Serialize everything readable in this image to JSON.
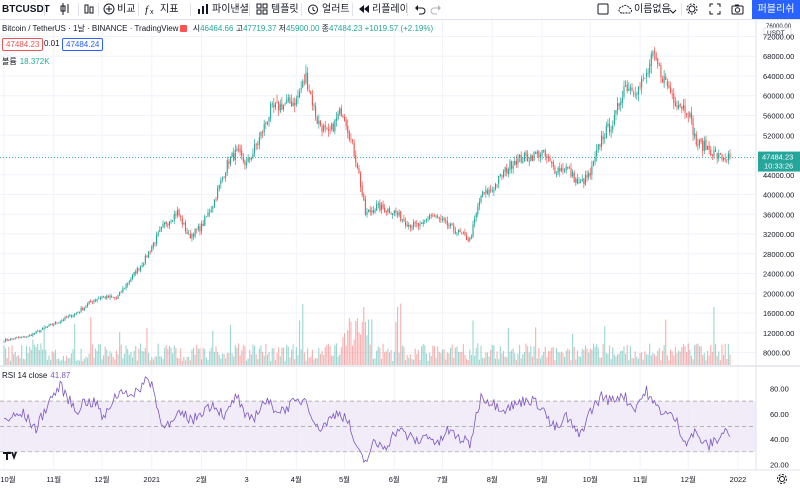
{
  "toolbar": {
    "symbol": "BTCUSDT",
    "compare_label": "비교",
    "indicators_label": "지표",
    "pine_label": "파이낸셜",
    "templates_label": "템플릿",
    "alert_label": "얼러트",
    "replay_label": "리플레이",
    "unnamed_label": "이름없음",
    "publish_label": "퍼블리쉬",
    "accent": "#2962ff"
  },
  "legend": {
    "title": "Bitcoin / TetherUS · 1날 · BINANCE · TradingView",
    "open_key": "시",
    "open": "46464.66",
    "high_key": "고",
    "high": "47719.37",
    "low_key": "저",
    "low": "45900.00",
    "close_key": "종",
    "close": "47484.23",
    "change": "+1019.57 (+2.19%)",
    "bid": "47484.23",
    "spread": "0.01",
    "ask": "47484.24"
  },
  "volume_legend": {
    "label": "볼륨",
    "value": "18.372K"
  },
  "rsi_legend": {
    "label": "RSI 14 close",
    "value": "41.87"
  },
  "chart_data": [
    {
      "type": "candlestick",
      "title": "Bitcoin / TetherUS · 1날 · BINANCE",
      "price_axis_unit": "USDT",
      "y_ticks": [
        8000,
        12000,
        16000,
        20000,
        24000,
        28000,
        32000,
        36000,
        40000,
        44000,
        48000,
        52000,
        56000,
        60000,
        64000,
        68000,
        72000
      ],
      "y_axis_top_label": "76000.00",
      "ylim": [
        6500,
        72500
      ],
      "last_price": 47484.23,
      "last_price_label": "47484.23",
      "countdown_label": "10:33:26",
      "x_labels": [
        "10월",
        "11월",
        "12월",
        "2021",
        "2월",
        "3",
        "4월",
        "5월",
        "6월",
        "7월",
        "8월",
        "9월",
        "10월",
        "11월",
        "12월",
        "2022"
      ],
      "x_label_index": [
        0,
        31,
        61,
        92,
        123,
        151,
        182,
        212,
        243,
        273,
        304,
        335,
        365,
        396,
        426,
        457
      ],
      "n_days": 453,
      "approx_close_anchors": [
        [
          0,
          10500
        ],
        [
          15,
          11300
        ],
        [
          25,
          12900
        ],
        [
          31,
          13800
        ],
        [
          45,
          16000
        ],
        [
          55,
          18500
        ],
        [
          61,
          19300
        ],
        [
          70,
          19000
        ],
        [
          80,
          23500
        ],
        [
          88,
          27000
        ],
        [
          92,
          29500
        ],
        [
          100,
          34000
        ],
        [
          108,
          36500
        ],
        [
          115,
          31500
        ],
        [
          123,
          33500
        ],
        [
          130,
          38000
        ],
        [
          140,
          47000
        ],
        [
          145,
          48500
        ],
        [
          151,
          46000
        ],
        [
          158,
          50500
        ],
        [
          166,
          57000
        ],
        [
          172,
          58000
        ],
        [
          182,
          59000
        ],
        [
          188,
          64000
        ],
        [
          195,
          55000
        ],
        [
          202,
          52000
        ],
        [
          210,
          57000
        ],
        [
          212,
          56000
        ],
        [
          220,
          46000
        ],
        [
          225,
          36000
        ],
        [
          232,
          37500
        ],
        [
          243,
          36500
        ],
        [
          252,
          34000
        ],
        [
          260,
          33500
        ],
        [
          265,
          36000
        ],
        [
          273,
          34500
        ],
        [
          282,
          32500
        ],
        [
          290,
          30800
        ],
        [
          297,
          39800
        ],
        [
          304,
          41000
        ],
        [
          310,
          44000
        ],
        [
          318,
          47000
        ],
        [
          326,
          47500
        ],
        [
          335,
          48500
        ],
        [
          343,
          45000
        ],
        [
          350,
          45500
        ],
        [
          358,
          42000
        ],
        [
          365,
          44000
        ],
        [
          372,
          51500
        ],
        [
          380,
          55000
        ],
        [
          386,
          62000
        ],
        [
          395,
          61500
        ],
        [
          400,
          64000
        ],
        [
          404,
          68000
        ],
        [
          410,
          64000
        ],
        [
          418,
          59000
        ],
        [
          426,
          57000
        ],
        [
          431,
          50500
        ],
        [
          438,
          49500
        ],
        [
          445,
          47500
        ],
        [
          452,
          47500
        ]
      ]
    },
    {
      "type": "bar",
      "title": "볼륨",
      "last_value": "18.372K",
      "up_color": "#26a69a",
      "down_color": "#ef5350"
    },
    {
      "type": "line",
      "title": "RSI 14 close",
      "last_value": 41.87,
      "y_ticks": [
        20,
        40,
        60,
        80
      ],
      "ylim": [
        18,
        93
      ],
      "upper_band": 70,
      "lower_band": 30,
      "middle_band": 50,
      "approx_anchors": [
        [
          0,
          55
        ],
        [
          12,
          60
        ],
        [
          20,
          48
        ],
        [
          28,
          70
        ],
        [
          35,
          82
        ],
        [
          45,
          62
        ],
        [
          50,
          70
        ],
        [
          58,
          68
        ],
        [
          62,
          55
        ],
        [
          68,
          72
        ],
        [
          75,
          80
        ],
        [
          80,
          72
        ],
        [
          88,
          87
        ],
        [
          92,
          85
        ],
        [
          97,
          56
        ],
        [
          103,
          50
        ],
        [
          110,
          60
        ],
        [
          118,
          55
        ],
        [
          123,
          62
        ],
        [
          130,
          68
        ],
        [
          138,
          58
        ],
        [
          145,
          75
        ],
        [
          150,
          56
        ],
        [
          156,
          58
        ],
        [
          162,
          70
        ],
        [
          172,
          62
        ],
        [
          180,
          68
        ],
        [
          188,
          72
        ],
        [
          195,
          48
        ],
        [
          200,
          52
        ],
        [
          208,
          62
        ],
        [
          214,
          55
        ],
        [
          220,
          30
        ],
        [
          225,
          22
        ],
        [
          230,
          36
        ],
        [
          238,
          35
        ],
        [
          245,
          48
        ],
        [
          252,
          42
        ],
        [
          258,
          38
        ],
        [
          264,
          44
        ],
        [
          270,
          35
        ],
        [
          276,
          47
        ],
        [
          282,
          42
        ],
        [
          290,
          36
        ],
        [
          297,
          74
        ],
        [
          305,
          68
        ],
        [
          312,
          64
        ],
        [
          320,
          68
        ],
        [
          326,
          72
        ],
        [
          335,
          66
        ],
        [
          340,
          52
        ],
        [
          345,
          48
        ],
        [
          350,
          58
        ],
        [
          358,
          42
        ],
        [
          365,
          62
        ],
        [
          372,
          74
        ],
        [
          378,
          70
        ],
        [
          385,
          76
        ],
        [
          392,
          64
        ],
        [
          400,
          78
        ],
        [
          404,
          68
        ],
        [
          410,
          62
        ],
        [
          418,
          56
        ],
        [
          424,
          38
        ],
        [
          430,
          45
        ],
        [
          438,
          34
        ],
        [
          444,
          40
        ],
        [
          450,
          48
        ],
        [
          453,
          42
        ]
      ]
    }
  ],
  "colors": {
    "up": "#26a69a",
    "down": "#ef5350",
    "rsi_line": "#7e57c2",
    "rsi_band_fill": "#ede7f6",
    "last_price_label_bg": "#26a69a"
  }
}
